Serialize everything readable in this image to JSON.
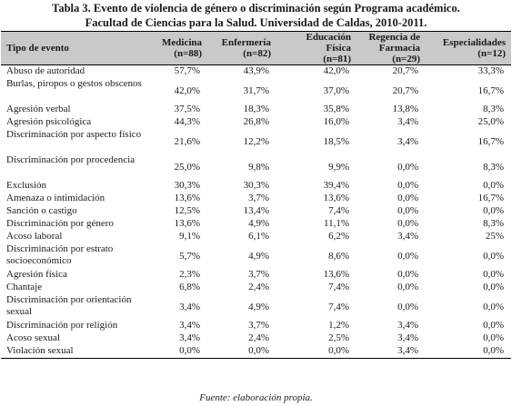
{
  "title": {
    "line1": "Tabla 3. Evento de violencia de género o discriminación según Programa académico.",
    "line2": "Facultad de Ciencias para la Salud. Universidad de Caldas, 2010-2011."
  },
  "table": {
    "headers": [
      {
        "line1": "Tipo de evento",
        "line2": ""
      },
      {
        "line1": "Medicina",
        "line2": "(n=88)"
      },
      {
        "line1": "Enfermería",
        "line2": "(n=82)"
      },
      {
        "line1": "Educación",
        "line2": "Física",
        "line3": "(n=81)"
      },
      {
        "line1": "Regencia de",
        "line2": "Farmacia",
        "line3": "(n=29)"
      },
      {
        "line1": "Especialidades",
        "line2": "(n=12)"
      }
    ],
    "rows": [
      {
        "label": "Abuso de autoridad",
        "values": [
          "57,7%",
          "43,9%",
          "42,0%",
          "20,7%",
          "33,3%"
        ]
      },
      {
        "label": "Burlas, piropos o gestos obscenos",
        "values": [
          "42,0%",
          "31,7%",
          "37,0%",
          "20,7%",
          "16,7%"
        ]
      },
      {
        "label": "Agresión verbal",
        "values": [
          "37,5%",
          "18,3%",
          "35,8%",
          "13,8%",
          "8,3%"
        ]
      },
      {
        "label": "Agresión psicológica",
        "values": [
          "44,3%",
          "26,8%",
          "16,0%",
          "3,4%",
          "25,0%"
        ]
      },
      {
        "label": "Discriminación por aspecto físico",
        "values": [
          "21,6%",
          "12,2%",
          "18,5%",
          "3,4%",
          "16,7%"
        ]
      },
      {
        "label": "Discriminación por procedencia",
        "values": [
          "25,0%",
          "9,8%",
          "9,9%",
          "0,0%",
          "8,3%"
        ]
      },
      {
        "label": "Exclusión",
        "values": [
          "30,3%",
          "30,3%",
          "39,4%",
          "0,0%",
          "0,0%"
        ]
      },
      {
        "label": "Amenaza o intimidación",
        "values": [
          "13,6%",
          "3,7%",
          "13,6%",
          "0,0%",
          "16,7%"
        ]
      },
      {
        "label": "Sanción o castigo",
        "values": [
          "12,5%",
          "13,4%",
          "7,4%",
          "0,0%",
          "0,0%"
        ]
      },
      {
        "label": "Discriminación por género",
        "values": [
          "13,6%",
          "4,9%",
          "11,1%",
          "0,0%",
          "8,3%"
        ]
      },
      {
        "label": "Acoso laboral",
        "values": [
          "9,1%",
          "6,1%",
          "6,2%",
          "3,4%",
          "25%"
        ]
      },
      {
        "label": "Discriminación por estrato socioeconómico",
        "values": [
          "5,7%",
          "4,9%",
          "8,6%",
          "0,0%",
          "0,0%"
        ]
      },
      {
        "label": "Agresión física",
        "values": [
          "2,3%",
          "3,7%",
          "13,6%",
          "0,0%",
          "0,0%"
        ]
      },
      {
        "label": "Chantaje",
        "values": [
          "6,8%",
          "2,4%",
          "7,4%",
          "0,0%",
          "0,0%"
        ]
      },
      {
        "label": "Discriminación por orientación sexual",
        "values": [
          "3,4%",
          "4,9%",
          "7,4%",
          "0,0%",
          "0,0%"
        ]
      },
      {
        "label": "Discriminación por religión",
        "values": [
          "3,4%",
          "3,7%",
          "1,2%",
          "3,4%",
          "0,0%"
        ]
      },
      {
        "label": "Acoso sexual",
        "values": [
          "3,4%",
          "2,4%",
          "2,5%",
          "3,4%",
          "0,0%"
        ]
      },
      {
        "label": "Violación sexual",
        "values": [
          "0,0%",
          "0,0%",
          "0,0%",
          "3,4%",
          "0,0%"
        ]
      }
    ]
  },
  "source": "Fuente: elaboración propia."
}
